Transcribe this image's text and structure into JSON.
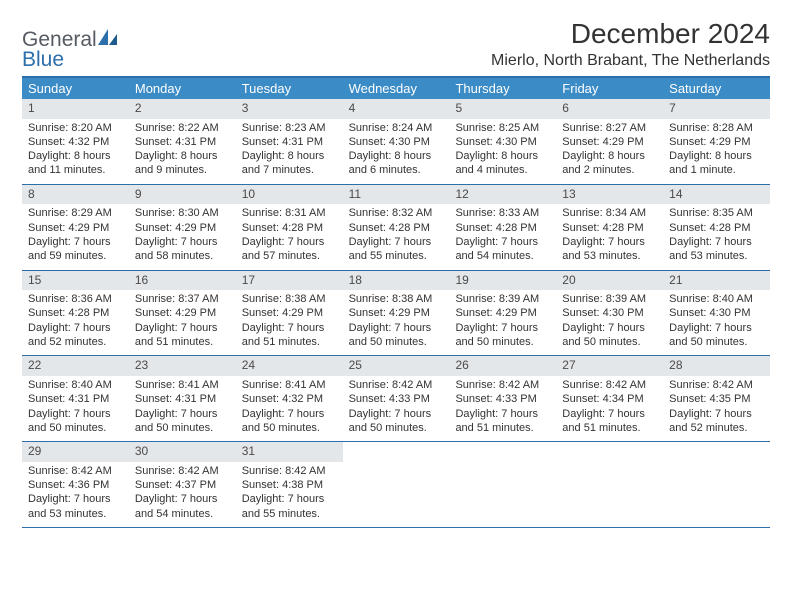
{
  "logo": {
    "text1": "General",
    "text2": "Blue",
    "accent_color": "#2c6fab",
    "text1_color": "#555b63"
  },
  "title": "December 2024",
  "location": "Mierlo, North Brabant, The Netherlands",
  "colors": {
    "header_bar": "#3b8bc6",
    "divider": "#2c6fab",
    "day_number_bg": "#e4e7ea",
    "text": "#333333",
    "bg": "#ffffff"
  },
  "weekdays": [
    "Sunday",
    "Monday",
    "Tuesday",
    "Wednesday",
    "Thursday",
    "Friday",
    "Saturday"
  ],
  "weeks": [
    [
      {
        "day": "1",
        "sunrise": "8:20 AM",
        "sunset": "4:32 PM",
        "daylight": "8 hours and 11 minutes."
      },
      {
        "day": "2",
        "sunrise": "8:22 AM",
        "sunset": "4:31 PM",
        "daylight": "8 hours and 9 minutes."
      },
      {
        "day": "3",
        "sunrise": "8:23 AM",
        "sunset": "4:31 PM",
        "daylight": "8 hours and 7 minutes."
      },
      {
        "day": "4",
        "sunrise": "8:24 AM",
        "sunset": "4:30 PM",
        "daylight": "8 hours and 6 minutes."
      },
      {
        "day": "5",
        "sunrise": "8:25 AM",
        "sunset": "4:30 PM",
        "daylight": "8 hours and 4 minutes."
      },
      {
        "day": "6",
        "sunrise": "8:27 AM",
        "sunset": "4:29 PM",
        "daylight": "8 hours and 2 minutes."
      },
      {
        "day": "7",
        "sunrise": "8:28 AM",
        "sunset": "4:29 PM",
        "daylight": "8 hours and 1 minute."
      }
    ],
    [
      {
        "day": "8",
        "sunrise": "8:29 AM",
        "sunset": "4:29 PM",
        "daylight": "7 hours and 59 minutes."
      },
      {
        "day": "9",
        "sunrise": "8:30 AM",
        "sunset": "4:29 PM",
        "daylight": "7 hours and 58 minutes."
      },
      {
        "day": "10",
        "sunrise": "8:31 AM",
        "sunset": "4:28 PM",
        "daylight": "7 hours and 57 minutes."
      },
      {
        "day": "11",
        "sunrise": "8:32 AM",
        "sunset": "4:28 PM",
        "daylight": "7 hours and 55 minutes."
      },
      {
        "day": "12",
        "sunrise": "8:33 AM",
        "sunset": "4:28 PM",
        "daylight": "7 hours and 54 minutes."
      },
      {
        "day": "13",
        "sunrise": "8:34 AM",
        "sunset": "4:28 PM",
        "daylight": "7 hours and 53 minutes."
      },
      {
        "day": "14",
        "sunrise": "8:35 AM",
        "sunset": "4:28 PM",
        "daylight": "7 hours and 53 minutes."
      }
    ],
    [
      {
        "day": "15",
        "sunrise": "8:36 AM",
        "sunset": "4:28 PM",
        "daylight": "7 hours and 52 minutes."
      },
      {
        "day": "16",
        "sunrise": "8:37 AM",
        "sunset": "4:29 PM",
        "daylight": "7 hours and 51 minutes."
      },
      {
        "day": "17",
        "sunrise": "8:38 AM",
        "sunset": "4:29 PM",
        "daylight": "7 hours and 51 minutes."
      },
      {
        "day": "18",
        "sunrise": "8:38 AM",
        "sunset": "4:29 PM",
        "daylight": "7 hours and 50 minutes."
      },
      {
        "day": "19",
        "sunrise": "8:39 AM",
        "sunset": "4:29 PM",
        "daylight": "7 hours and 50 minutes."
      },
      {
        "day": "20",
        "sunrise": "8:39 AM",
        "sunset": "4:30 PM",
        "daylight": "7 hours and 50 minutes."
      },
      {
        "day": "21",
        "sunrise": "8:40 AM",
        "sunset": "4:30 PM",
        "daylight": "7 hours and 50 minutes."
      }
    ],
    [
      {
        "day": "22",
        "sunrise": "8:40 AM",
        "sunset": "4:31 PM",
        "daylight": "7 hours and 50 minutes."
      },
      {
        "day": "23",
        "sunrise": "8:41 AM",
        "sunset": "4:31 PM",
        "daylight": "7 hours and 50 minutes."
      },
      {
        "day": "24",
        "sunrise": "8:41 AM",
        "sunset": "4:32 PM",
        "daylight": "7 hours and 50 minutes."
      },
      {
        "day": "25",
        "sunrise": "8:42 AM",
        "sunset": "4:33 PM",
        "daylight": "7 hours and 50 minutes."
      },
      {
        "day": "26",
        "sunrise": "8:42 AM",
        "sunset": "4:33 PM",
        "daylight": "7 hours and 51 minutes."
      },
      {
        "day": "27",
        "sunrise": "8:42 AM",
        "sunset": "4:34 PM",
        "daylight": "7 hours and 51 minutes."
      },
      {
        "day": "28",
        "sunrise": "8:42 AM",
        "sunset": "4:35 PM",
        "daylight": "7 hours and 52 minutes."
      }
    ],
    [
      {
        "day": "29",
        "sunrise": "8:42 AM",
        "sunset": "4:36 PM",
        "daylight": "7 hours and 53 minutes."
      },
      {
        "day": "30",
        "sunrise": "8:42 AM",
        "sunset": "4:37 PM",
        "daylight": "7 hours and 54 minutes."
      },
      {
        "day": "31",
        "sunrise": "8:42 AM",
        "sunset": "4:38 PM",
        "daylight": "7 hours and 55 minutes."
      },
      {
        "empty": true
      },
      {
        "empty": true
      },
      {
        "empty": true
      },
      {
        "empty": true
      }
    ]
  ],
  "labels": {
    "sunrise": "Sunrise:",
    "sunset": "Sunset:",
    "daylight": "Daylight:"
  }
}
